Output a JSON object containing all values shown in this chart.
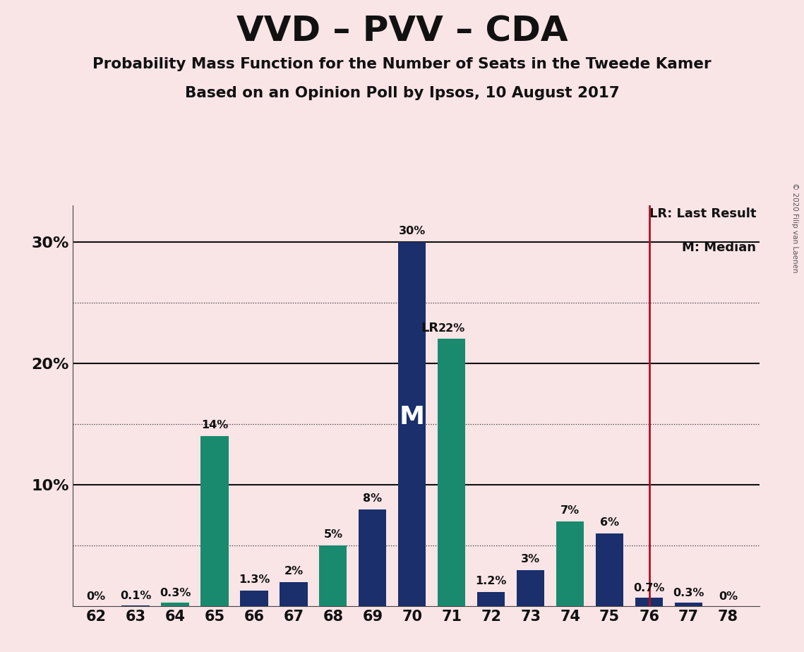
{
  "title": "VVD – PVV – CDA",
  "subtitle1": "Probability Mass Function for the Number of Seats in the Tweede Kamer",
  "subtitle2": "Based on an Opinion Poll by Ipsos, 10 August 2017",
  "copyright": "© 2020 Filip van Laenen",
  "seats": [
    62,
    63,
    64,
    65,
    66,
    67,
    68,
    69,
    70,
    71,
    72,
    73,
    74,
    75,
    76,
    77,
    78
  ],
  "values": [
    0.0,
    0.1,
    0.3,
    14.0,
    1.3,
    2.0,
    5.0,
    8.0,
    30.0,
    22.0,
    1.2,
    3.0,
    7.0,
    6.0,
    0.7,
    0.3,
    0.0
  ],
  "colors": [
    "#1a8a6e",
    "#1a2f6b",
    "#1a8a6e",
    "#1a8a6e",
    "#1a2f6b",
    "#1a2f6b",
    "#1a8a6e",
    "#1a2f6b",
    "#1a2f6b",
    "#1a8a6e",
    "#1a2f6b",
    "#1a2f6b",
    "#1a8a6e",
    "#1a2f6b",
    "#1a2f6b",
    "#1a2f6b",
    "#1a8a6e"
  ],
  "labels": [
    "0%",
    "0.1%",
    "0.3%",
    "14%",
    "1.3%",
    "2%",
    "5%",
    "8%",
    "30%",
    "22%",
    "1.2%",
    "3%",
    "7%",
    "6%",
    "0.7%",
    "0.3%",
    "0%"
  ],
  "navy_color": "#1a2f6b",
  "green_color": "#1a8a6e",
  "background_color": "#f9e4e6",
  "lr_seat": 76,
  "median_seat": 70,
  "lr_label_seat": 71,
  "ylim": 33,
  "bar_width": 0.7
}
